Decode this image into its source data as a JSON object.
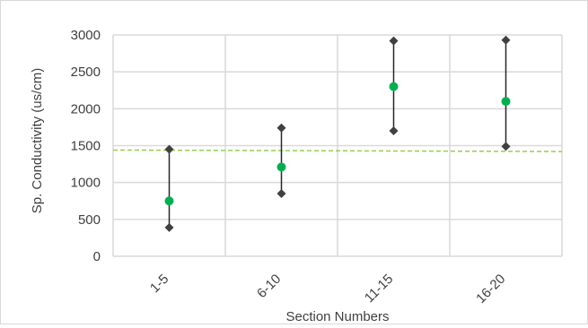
{
  "chart_data": {
    "type": "range",
    "categories": [
      "1-5",
      "6-10",
      "11-15",
      "16-20"
    ],
    "series": [
      {
        "role": "max",
        "values": [
          1450,
          1740,
          2920,
          2930
        ]
      },
      {
        "role": "min",
        "values": [
          390,
          850,
          1700,
          1490
        ]
      },
      {
        "role": "mean",
        "values": [
          750,
          1210,
          2300,
          2100
        ]
      }
    ],
    "reference_line": {
      "y_start": 1440,
      "y_end": 1420,
      "style": "dashed"
    },
    "xlabel": "Section Numbers",
    "ylabel": "Sp. Conductivity (us/cm)",
    "ylim": [
      0,
      3000
    ],
    "yticks": [
      0,
      500,
      1000,
      1500,
      2000,
      2500,
      3000
    ],
    "grid": true,
    "colors": {
      "mean": "#00b050",
      "range_marker": "#404040",
      "range_line": "#262626",
      "reference_line": "#92d050",
      "grid": "#d9d9d9",
      "text": "#404040"
    }
  }
}
